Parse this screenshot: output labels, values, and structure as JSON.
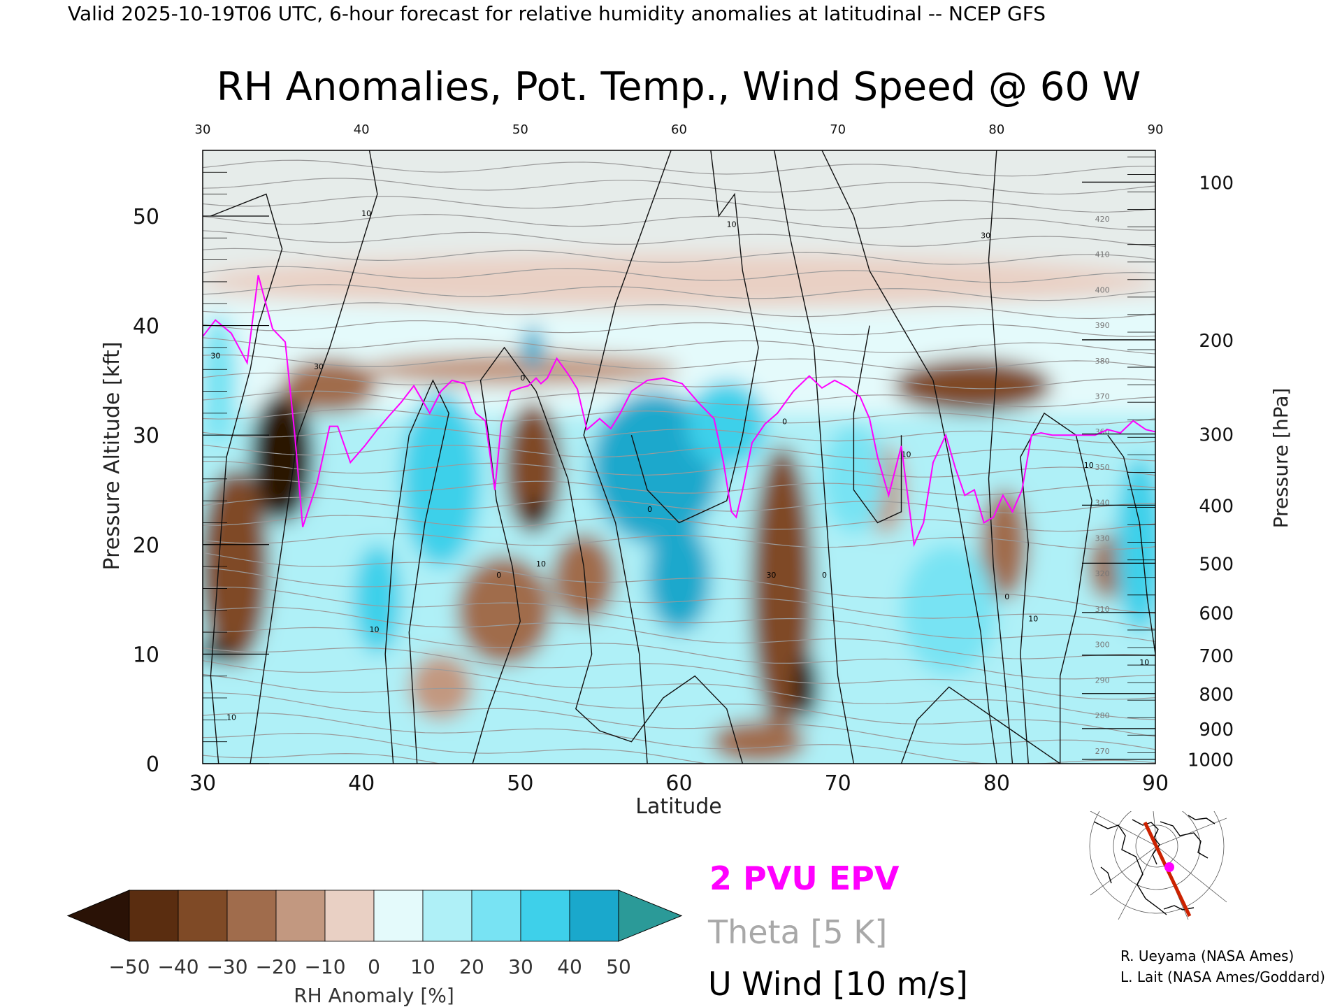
{
  "header": {
    "top_line": "Valid 2025-10-19T06 UTC, 6-hour forecast for relative humidity anomalies at latitudinal -- NCEP GFS",
    "title": "RH Anomalies, Pot. Temp., Wind Speed @ 60 W"
  },
  "chart_data": {
    "type": "heatmap",
    "xlabel": "Latitude",
    "ylabel": "Pressure Altitude [kft]",
    "y2label": "Pressure [hPa]",
    "xlim": [
      30,
      90
    ],
    "ylim": [
      0,
      56
    ],
    "x_ticks": [
      "30",
      "40",
      "50",
      "60",
      "70",
      "80",
      "90"
    ],
    "x_top_ticks": [
      "30",
      "40",
      "50",
      "60",
      "70",
      "80",
      "90"
    ],
    "y_ticks": [
      "0",
      "10",
      "20",
      "30",
      "40",
      "50"
    ],
    "pressure_ticks": [
      {
        "label": "100",
        "alt": 53.1
      },
      {
        "label": "200",
        "alt": 38.7
      },
      {
        "label": "300",
        "alt": 30.1
      },
      {
        "label": "400",
        "alt": 23.6
      },
      {
        "label": "500",
        "alt": 18.3
      },
      {
        "label": "600",
        "alt": 13.8
      },
      {
        "label": "700",
        "alt": 9.9
      },
      {
        "label": "800",
        "alt": 6.4
      },
      {
        "label": "900",
        "alt": 3.2
      },
      {
        "label": "1000",
        "alt": 0.4
      }
    ],
    "theta_labels": [
      "270",
      "280",
      "290",
      "300",
      "310",
      "320",
      "330",
      "340",
      "350",
      "360",
      "370",
      "380",
      "390",
      "400",
      "410",
      "420"
    ],
    "rh_anomaly_scale": {
      "label": "RH Anomaly [%]",
      "ticks": [
        "-50",
        "-40",
        "-30",
        "-20",
        "-10",
        "0",
        "10",
        "20",
        "30",
        "40",
        "50"
      ],
      "colors": [
        "#2a1206",
        "#5a2d10",
        "#7f4a26",
        "#a06c4c",
        "#c29880",
        "#e9d0c4",
        "#e4fafb",
        "#aff0f7",
        "#78e3f3",
        "#3ed0ea",
        "#1aa8cc",
        "#2b9a98"
      ]
    },
    "rh_patches": [
      {
        "lat": 35,
        "alt": 28,
        "rx": 2,
        "ry": 6,
        "v": -55
      },
      {
        "lat": 32,
        "alt": 18,
        "rx": 2.2,
        "ry": 9,
        "v": -38
      },
      {
        "lat": 30.8,
        "alt": 10.3,
        "rx": 1.2,
        "ry": 1,
        "v": -60
      },
      {
        "lat": 38,
        "alt": 34.5,
        "rx": 3,
        "ry": 2.5,
        "v": -30
      },
      {
        "lat": 50.8,
        "alt": 27,
        "rx": 1.8,
        "ry": 6,
        "v": -40
      },
      {
        "lat": 51,
        "alt": 23,
        "rx": 0.8,
        "ry": 1.2,
        "v": -60
      },
      {
        "lat": 49,
        "alt": 14,
        "rx": 3,
        "ry": 5,
        "v": -30
      },
      {
        "lat": 54,
        "alt": 17,
        "rx": 2,
        "ry": 4,
        "v": -25
      },
      {
        "lat": 45,
        "alt": 7,
        "rx": 2,
        "ry": 3,
        "v": -20
      },
      {
        "lat": 66.5,
        "alt": 16,
        "rx": 2,
        "ry": 13,
        "v": -40
      },
      {
        "lat": 68,
        "alt": 7,
        "rx": 0.8,
        "ry": 3,
        "v": -55
      },
      {
        "lat": 65,
        "alt": 2,
        "rx": 3,
        "ry": 2,
        "v": -30
      },
      {
        "lat": 78.5,
        "alt": 34.5,
        "rx": 5,
        "ry": 2.5,
        "v": -35
      },
      {
        "lat": 80.5,
        "alt": 20,
        "rx": 1.5,
        "ry": 5,
        "v": -22
      },
      {
        "lat": 87,
        "alt": 18,
        "rx": 1.2,
        "ry": 3,
        "v": -22
      },
      {
        "lat": 73,
        "alt": 25,
        "rx": 1.2,
        "ry": 4,
        "v": -18
      },
      {
        "lat": 50,
        "alt": 36,
        "rx": 10,
        "ry": 1.5,
        "v": -15
      },
      {
        "lat": 60,
        "alt": 44,
        "rx": 30,
        "ry": 2.5,
        "v": -10
      },
      {
        "lat": 45,
        "alt": 26,
        "rx": 2.5,
        "ry": 8,
        "v": 35
      },
      {
        "lat": 41,
        "alt": 15,
        "rx": 1.5,
        "ry": 5,
        "v": 35
      },
      {
        "lat": 58.5,
        "alt": 27,
        "rx": 4,
        "ry": 7,
        "v": 40
      },
      {
        "lat": 60,
        "alt": 17,
        "rx": 2,
        "ry": 5,
        "v": 40
      },
      {
        "lat": 63,
        "alt": 31,
        "rx": 2.5,
        "ry": 4,
        "v": 35
      },
      {
        "lat": 71,
        "alt": 26,
        "rx": 2,
        "ry": 5,
        "v": 25
      },
      {
        "lat": 77,
        "alt": 14,
        "rx": 3,
        "ry": 6,
        "v": 25
      },
      {
        "lat": 89,
        "alt": 20,
        "rx": 1.5,
        "ry": 8,
        "v": 35
      },
      {
        "lat": 50.8,
        "alt": 38,
        "rx": 0.7,
        "ry": 2,
        "v": 40
      },
      {
        "lat": 31,
        "alt": 35,
        "rx": 1.2,
        "ry": 6,
        "v": 20
      }
    ],
    "series": [
      {
        "name": "2 PVU EPV",
        "color": "#ff00ff",
        "kind": "line",
        "x": [
          30,
          30.8,
          31.8,
          32.8,
          33.5,
          34.4,
          35.2,
          35.8,
          36.3,
          37.2,
          38,
          38.5,
          39.3,
          40.2,
          41,
          41.7,
          42.5,
          43.3,
          44.3,
          45,
          45.7,
          46.5,
          47.2,
          47.8,
          48.4,
          48.8,
          49.4,
          50,
          50.5,
          51,
          51.3,
          51.7,
          52.3,
          53,
          53.6,
          54.2,
          55,
          55.7,
          56.3,
          57,
          58,
          59,
          60.2,
          61.2,
          62.2,
          62.8,
          63.3,
          63.6,
          64,
          64.6,
          65.4,
          66.2,
          67.2,
          68.2,
          69,
          69.8,
          70.6,
          71.4,
          72,
          72.5,
          73.2,
          74,
          74.8,
          75.4,
          76,
          76.8,
          77.4,
          78,
          78.6,
          79.2,
          79.8,
          80.4,
          81,
          81.6,
          82.2,
          82.8,
          83.5,
          84.3,
          85.2,
          86.2,
          87,
          87.8,
          88.6,
          89.4,
          90
        ],
        "y": [
          39,
          40.5,
          39.3,
          36.6,
          44.6,
          39.7,
          38.5,
          30,
          21.6,
          25.6,
          30.8,
          30.8,
          27.5,
          29,
          30.5,
          31.7,
          33,
          34.5,
          32,
          34,
          35,
          34.7,
          32,
          31.3,
          25,
          31,
          34,
          34.3,
          34.5,
          35.2,
          34.7,
          35.2,
          37,
          35.6,
          34.2,
          30.5,
          31.5,
          30.6,
          32,
          34,
          35,
          35.2,
          34.7,
          33,
          31.5,
          27.5,
          23,
          22.5,
          25,
          29.3,
          31,
          32,
          34,
          35.4,
          34.3,
          35,
          34.4,
          33.5,
          31.5,
          28,
          24.5,
          29,
          20,
          22,
          27.5,
          30,
          27,
          24.5,
          25,
          22,
          22.5,
          24.5,
          23,
          25,
          30,
          30.2,
          30,
          30,
          30,
          30,
          30.5,
          30.2,
          31.3,
          30.5,
          30.3
        ]
      }
    ],
    "u_wind_contours": [
      "10",
      "10",
      "30",
      "10",
      "0",
      "10",
      "0",
      "10",
      "30",
      "0",
      "0",
      "10",
      "0",
      "30",
      "10",
      "10",
      "10",
      "30",
      "0"
    ],
    "legend": [
      {
        "label": "2 PVU EPV",
        "color": "#ff00ff"
      },
      {
        "label": "Theta [5 K]",
        "color": "#a8a8a8"
      },
      {
        "label": "U Wind [10 m/s]",
        "color": "#000000"
      }
    ],
    "map_inset": {
      "point_color": "#ff00ff",
      "line_color": "#cc2200"
    }
  },
  "credits": {
    "line1": "R. Ueyama (NASA Ames)",
    "line2": "L. Lait (NASA Ames/Goddard)"
  },
  "icons": {
    "map_inset": "globe-map-icon"
  }
}
